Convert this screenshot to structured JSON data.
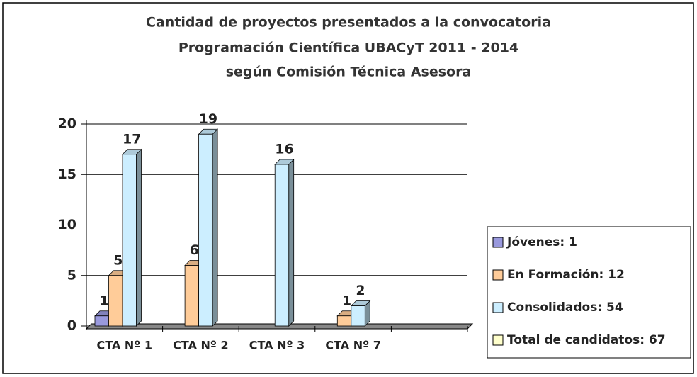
{
  "chart_data": {
    "type": "bar3d",
    "title": [
      "Cantidad de proyectos presentados a la convocatoria",
      "Programación Científica UBACyT 2011 - 2014",
      "según Comisión Técnica Asesora"
    ],
    "categories": [
      "CTA Nº 1",
      "CTA Nº 2",
      "CTA Nº 3",
      "CTA Nº 7",
      null
    ],
    "series": [
      {
        "name": "Jóvenes: 1",
        "color": "#9999dd",
        "values": [
          1,
          null,
          null,
          null,
          null
        ]
      },
      {
        "name": "En Formación: 12",
        "color": "#ffcc99",
        "values": [
          5,
          6,
          null,
          1,
          null
        ]
      },
      {
        "name": "Consolidados: 54",
        "color": "#cceeff",
        "values": [
          17,
          19,
          16,
          2,
          null
        ]
      },
      {
        "name": "Total de candidatos: 67",
        "color": "#ffffcc",
        "values": [
          null,
          null,
          null,
          null,
          null
        ]
      }
    ],
    "ylim": [
      0,
      20
    ],
    "yticks": [
      0,
      5,
      10,
      15,
      20
    ],
    "grid": true,
    "legend": "right"
  }
}
